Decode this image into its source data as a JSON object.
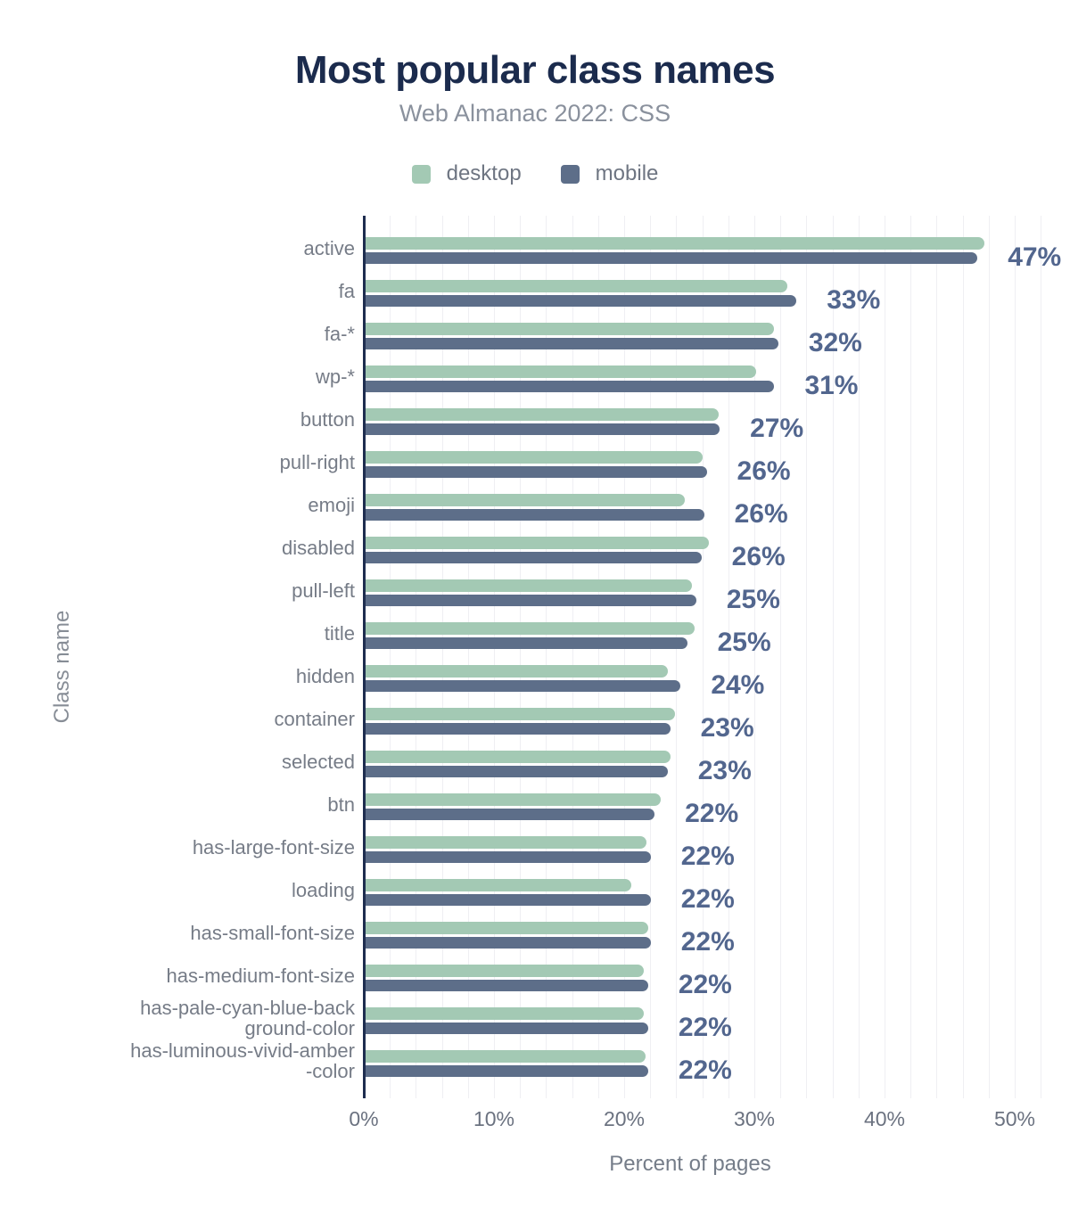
{
  "header": {
    "title": "Most popular class names",
    "subtitle": "Web Almanac 2022: CSS"
  },
  "legend": {
    "items": [
      {
        "label": "desktop",
        "color": "#a3c9b4"
      },
      {
        "label": "mobile",
        "color": "#5d6e89"
      }
    ]
  },
  "axes": {
    "x_title": "Percent of pages",
    "y_title": "Class name",
    "x_ticks": [
      "0%",
      "10%",
      "20%",
      "30%",
      "40%",
      "50%"
    ]
  },
  "colors": {
    "title": "#1b2b4d",
    "subtitle": "#8a919d",
    "axis_line": "#1e2d4f",
    "gridline": "#efeff3",
    "value_label": "#52668e",
    "category_label": "#767c87",
    "background": "#ffffff"
  },
  "chart_data": {
    "type": "bar",
    "orientation": "horizontal",
    "title": "Most popular class names",
    "subtitle": "Web Almanac 2022: CSS",
    "xlabel": "Percent of pages",
    "ylabel": "Class name",
    "xlim": [
      0,
      52.6
    ],
    "grid": true,
    "grid_step_pct": 2,
    "legend_position": "top",
    "categories": [
      "active",
      "fa",
      "fa-*",
      "wp-*",
      "button",
      "pull-right",
      "emoji",
      "disabled",
      "pull-left",
      "title",
      "hidden",
      "container",
      "selected",
      "btn",
      "has-large-font-size",
      "loading",
      "has-small-font-size",
      "has-medium-font-size",
      "has-pale-cyan-blue-background-color",
      "has-luminous-vivid-amber-color"
    ],
    "category_lines": [
      [
        "active"
      ],
      [
        "fa"
      ],
      [
        "fa-*"
      ],
      [
        "wp-*"
      ],
      [
        "button"
      ],
      [
        "pull-right"
      ],
      [
        "emoji"
      ],
      [
        "disabled"
      ],
      [
        "pull-left"
      ],
      [
        "title"
      ],
      [
        "hidden"
      ],
      [
        "container"
      ],
      [
        "selected"
      ],
      [
        "btn"
      ],
      [
        "has-large-font-size"
      ],
      [
        "loading"
      ],
      [
        "has-small-font-size"
      ],
      [
        "has-medium-font-size"
      ],
      [
        "has-pale-cyan-blue-back",
        "ground-color"
      ],
      [
        "has-luminous-vivid-amber",
        "-color"
      ]
    ],
    "series": [
      {
        "name": "desktop",
        "color": "#a3c9b4",
        "values": [
          47.5,
          32.4,
          31.4,
          30.0,
          27.1,
          25.9,
          24.5,
          26.4,
          25.1,
          25.3,
          23.2,
          23.8,
          23.4,
          22.7,
          21.6,
          20.4,
          21.7,
          21.4,
          21.4,
          21.5
        ]
      },
      {
        "name": "mobile",
        "color": "#5d6e89",
        "values": [
          47.0,
          33.1,
          31.7,
          31.4,
          27.2,
          26.2,
          26.0,
          25.8,
          25.4,
          24.7,
          24.2,
          23.4,
          23.2,
          22.2,
          21.9,
          21.9,
          21.9,
          21.7,
          21.7,
          21.7
        ]
      }
    ],
    "bar_labels": [
      "47%",
      "33%",
      "32%",
      "31%",
      "27%",
      "26%",
      "26%",
      "26%",
      "25%",
      "25%",
      "24%",
      "23%",
      "23%",
      "22%",
      "22%",
      "22%",
      "22%",
      "22%",
      "22%",
      "22%"
    ]
  }
}
